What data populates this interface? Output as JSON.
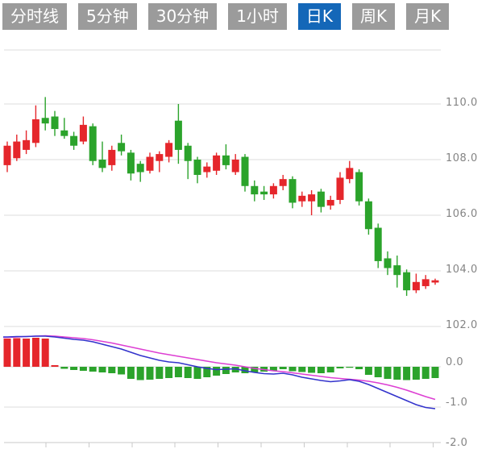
{
  "tabs": {
    "items": [
      {
        "label": "分时线",
        "active": false
      },
      {
        "label": "5分钟",
        "active": false
      },
      {
        "label": "30分钟",
        "active": false
      },
      {
        "label": "1小时",
        "active": false
      },
      {
        "label": "日K",
        "active": true
      },
      {
        "label": "周K",
        "active": false
      },
      {
        "label": "月K",
        "active": false
      }
    ]
  },
  "colors": {
    "up": "#e5262b",
    "down": "#2ba32b",
    "dif_line": "#3333cc",
    "dea_line": "#dd3fd3",
    "tab_bg": "#9b9b9b",
    "tab_active_bg": "#1467b8",
    "tab_text": "#ffffff",
    "grid": "#dedede",
    "axis_text": "#848484"
  },
  "chart_data": {
    "type": "candlestick",
    "title": "",
    "legend": [],
    "panels": [
      {
        "name": "price",
        "ytick_labels": [
          "110.0",
          "108.0",
          "106.0",
          "104.0",
          "102.0"
        ],
        "yticks": [
          110,
          108,
          106,
          104,
          102
        ],
        "ylim": [
          101.8,
          112.0
        ],
        "candles_ohlc": [
          [
            107.8,
            108.65,
            107.55,
            108.5
          ],
          [
            108.05,
            108.9,
            107.95,
            108.65
          ],
          [
            108.35,
            109.05,
            108.2,
            108.7
          ],
          [
            108.6,
            109.95,
            108.45,
            109.45
          ],
          [
            109.5,
            110.25,
            109.05,
            109.3
          ],
          [
            109.55,
            109.75,
            108.85,
            109.1
          ],
          [
            109.05,
            109.5,
            108.75,
            108.85
          ],
          [
            108.85,
            109.0,
            108.35,
            108.5
          ],
          [
            108.65,
            109.55,
            108.55,
            109.25
          ],
          [
            109.2,
            109.3,
            107.8,
            107.95
          ],
          [
            108.0,
            108.65,
            107.55,
            107.7
          ],
          [
            107.8,
            108.5,
            107.6,
            108.35
          ],
          [
            108.6,
            108.9,
            108.15,
            108.3
          ],
          [
            108.25,
            108.35,
            107.25,
            107.5
          ],
          [
            107.85,
            107.95,
            107.2,
            107.55
          ],
          [
            107.6,
            108.25,
            107.5,
            108.1
          ],
          [
            107.95,
            108.3,
            107.55,
            108.2
          ],
          [
            108.1,
            108.7,
            107.9,
            108.6
          ],
          [
            109.4,
            110.0,
            107.85,
            108.35
          ],
          [
            108.5,
            108.6,
            107.3,
            107.95
          ],
          [
            108.0,
            108.1,
            107.15,
            107.45
          ],
          [
            107.55,
            107.9,
            107.35,
            107.75
          ],
          [
            107.6,
            108.25,
            107.45,
            108.15
          ],
          [
            108.15,
            108.55,
            107.65,
            107.8
          ],
          [
            107.55,
            108.2,
            107.45,
            108.0
          ],
          [
            108.1,
            108.2,
            106.85,
            107.05
          ],
          [
            107.05,
            107.25,
            106.5,
            106.75
          ],
          [
            106.85,
            107.05,
            106.55,
            106.75
          ],
          [
            106.75,
            107.15,
            106.6,
            107.05
          ],
          [
            107.05,
            107.45,
            106.9,
            107.3
          ],
          [
            107.3,
            107.4,
            106.25,
            106.45
          ],
          [
            106.5,
            106.85,
            106.3,
            106.7
          ],
          [
            106.5,
            106.9,
            106.0,
            106.75
          ],
          [
            106.85,
            106.95,
            106.1,
            106.3
          ],
          [
            106.35,
            106.7,
            106.2,
            106.55
          ],
          [
            106.55,
            107.55,
            106.4,
            107.35
          ],
          [
            107.3,
            107.95,
            107.15,
            107.7
          ],
          [
            107.55,
            107.65,
            106.35,
            106.5
          ],
          [
            106.5,
            106.6,
            105.3,
            105.5
          ],
          [
            105.55,
            105.7,
            104.1,
            104.35
          ],
          [
            104.45,
            104.7,
            103.85,
            104.1
          ],
          [
            104.2,
            104.55,
            103.4,
            103.85
          ],
          [
            103.95,
            104.05,
            103.1,
            103.3
          ],
          [
            103.3,
            103.9,
            103.2,
            103.6
          ],
          [
            103.45,
            103.85,
            103.35,
            103.7
          ],
          [
            103.58,
            103.72,
            103.5,
            103.66
          ]
        ]
      },
      {
        "name": "macd",
        "ytick_labels": [
          "0.0",
          "-1.0",
          "-2.0"
        ],
        "yticks": [
          0,
          -1,
          -2
        ],
        "ylim": [
          -2.0,
          1.0
        ],
        "dif": [
          0.74,
          0.75,
          0.75,
          0.76,
          0.76,
          0.74,
          0.71,
          0.68,
          0.66,
          0.62,
          0.56,
          0.5,
          0.44,
          0.36,
          0.28,
          0.22,
          0.16,
          0.12,
          0.1,
          0.05,
          0.0,
          -0.04,
          -0.07,
          -0.06,
          -0.05,
          -0.1,
          -0.14,
          -0.17,
          -0.18,
          -0.16,
          -0.2,
          -0.26,
          -0.3,
          -0.34,
          -0.37,
          -0.35,
          -0.32,
          -0.36,
          -0.44,
          -0.54,
          -0.64,
          -0.74,
          -0.84,
          -0.94,
          -1.01,
          -1.04
        ],
        "dea": [
          0.73,
          0.74,
          0.75,
          0.76,
          0.77,
          0.76,
          0.74,
          0.72,
          0.7,
          0.67,
          0.63,
          0.59,
          0.54,
          0.49,
          0.44,
          0.39,
          0.34,
          0.3,
          0.26,
          0.22,
          0.18,
          0.14,
          0.1,
          0.07,
          0.04,
          0.0,
          -0.04,
          -0.07,
          -0.1,
          -0.12,
          -0.15,
          -0.18,
          -0.21,
          -0.24,
          -0.27,
          -0.29,
          -0.31,
          -0.33,
          -0.36,
          -0.4,
          -0.45,
          -0.51,
          -0.58,
          -0.66,
          -0.74,
          -0.81
        ],
        "hist": [
          0.7,
          0.71,
          0.7,
          0.72,
          0.7,
          0.04,
          -0.05,
          -0.08,
          -0.1,
          -0.12,
          -0.14,
          -0.16,
          -0.19,
          -0.3,
          -0.33,
          -0.32,
          -0.3,
          -0.28,
          -0.26,
          -0.28,
          -0.3,
          -0.26,
          -0.22,
          -0.18,
          -0.14,
          -0.16,
          -0.14,
          -0.12,
          -0.1,
          -0.06,
          -0.11,
          -0.13,
          -0.15,
          -0.16,
          -0.14,
          -0.04,
          -0.02,
          -0.06,
          -0.2,
          -0.26,
          -0.3,
          -0.32,
          -0.33,
          -0.32,
          -0.3,
          -0.28
        ]
      }
    ]
  }
}
